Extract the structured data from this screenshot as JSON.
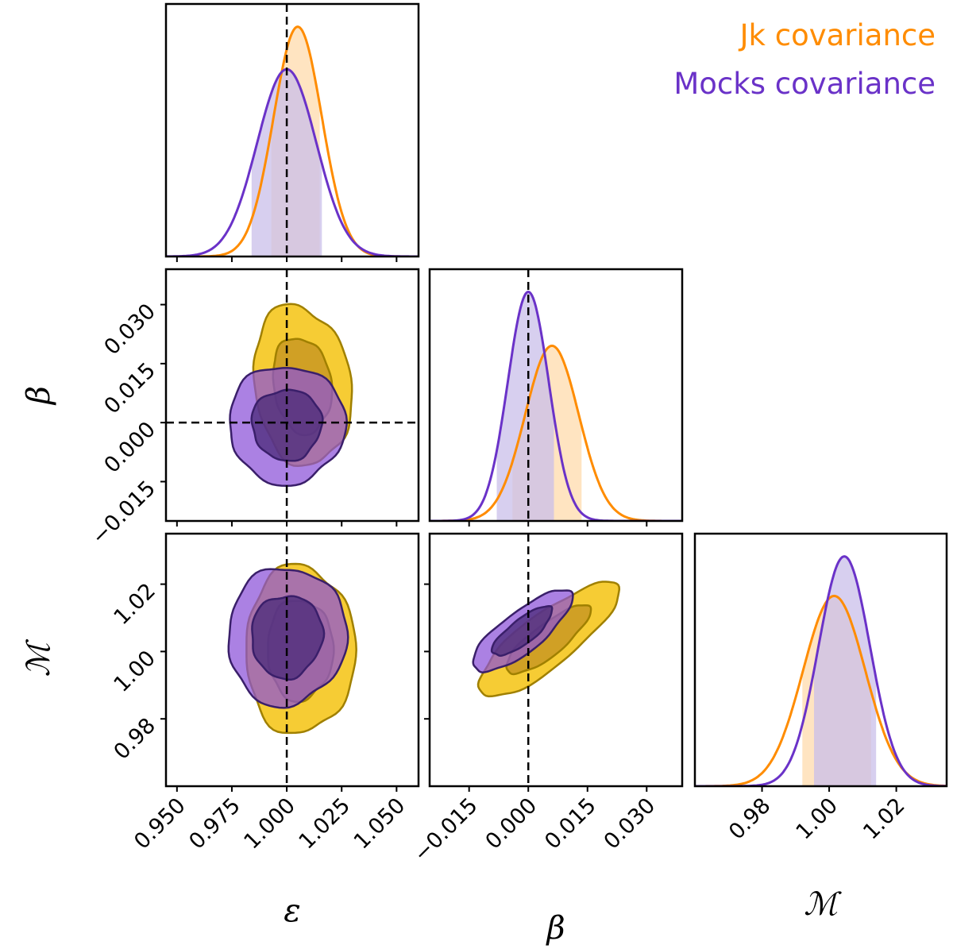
{
  "colors": {
    "jk_line": "#ff8c00",
    "jk_fill": "#f5c518",
    "jk_edge": "#a08000",
    "mocks_line": "#6a32c8",
    "mocks_fill_outer": "#8a50d8",
    "mocks_fill_inner": "#4a2a78",
    "mocks_edge": "#3a1f6a",
    "jk_band": "#ffd9a6",
    "mocks_band": "#c9bfe9",
    "overlap_band": "#c9a9a9"
  },
  "legend": {
    "jk": "Jk covariance",
    "mocks": "Mocks covariance"
  },
  "chart_data": {
    "type": "corner",
    "parameters": [
      {
        "id": "epsilon",
        "symbol": "ε",
        "range": [
          0.945,
          1.06
        ],
        "ticks": [
          "0.950",
          "0.975",
          "1.000",
          "1.025",
          "1.050"
        ],
        "tick_values": [
          0.95,
          0.975,
          1.0,
          1.025,
          1.05
        ],
        "truth": 1.0
      },
      {
        "id": "beta",
        "symbol": "β",
        "range": [
          -0.025,
          0.039
        ],
        "ticks": [
          "−0.015",
          "0.000",
          "0.015",
          "0.030"
        ],
        "tick_values": [
          -0.015,
          0.0,
          0.015,
          0.03
        ],
        "truth": 0.0
      },
      {
        "id": "M",
        "symbol": "ℳ",
        "range": [
          0.96,
          1.035
        ],
        "ticks": [
          "0.98",
          "1.00",
          "1.02"
        ],
        "tick_values": [
          0.98,
          1.0,
          1.02
        ],
        "truth": null
      }
    ],
    "series": [
      {
        "name": "Jk covariance",
        "mean": [
          1.005,
          0.006,
          1.0015
        ],
        "sigma": [
          0.011,
          0.0068,
          0.0093
        ],
        "interval68": [
          [
            0.993,
            1.015
          ],
          [
            -0.004,
            0.0135
          ],
          [
            0.992,
            1.0125
          ]
        ]
      },
      {
        "name": "Mocks covariance",
        "mean": [
          1.0,
          0.0,
          1.0045
        ],
        "sigma": [
          0.0135,
          0.0052,
          0.0077
        ],
        "interval68": [
          [
            0.984,
            1.016
          ],
          [
            -0.008,
            0.0065
          ],
          [
            0.9955,
            1.014
          ]
        ]
      }
    ],
    "contours": [
      {
        "name": "Jk covariance",
        "pair": [
          "epsilon",
          "beta"
        ],
        "center": [
          1.007,
          0.0095
        ],
        "radius": [
          0.022,
          0.0205
        ],
        "tilt": 8
      },
      {
        "name": "Mocks covariance",
        "pair": [
          "epsilon",
          "beta"
        ],
        "center": [
          1.0,
          -0.0005
        ],
        "radius": [
          0.0265,
          0.015
        ],
        "tilt": 4
      },
      {
        "name": "Jk covariance",
        "pair": [
          "epsilon",
          "M"
        ],
        "center": [
          1.006,
          1.0005
        ],
        "radius": [
          0.025,
          0.025
        ],
        "tilt": 0
      },
      {
        "name": "Mocks covariance",
        "pair": [
          "epsilon",
          "M"
        ],
        "center": [
          1.0,
          1.0045
        ],
        "radius": [
          0.027,
          0.0205
        ],
        "tilt": -6
      },
      {
        "name": "Jk covariance",
        "pair": [
          "beta",
          "M"
        ],
        "center": [
          0.005,
          1.0035
        ],
        "radius": [
          0.022,
          0.0078
        ],
        "tilt": 38
      },
      {
        "name": "Mocks covariance",
        "pair": [
          "beta",
          "M"
        ],
        "center": [
          -0.0015,
          1.006
        ],
        "radius": [
          0.0155,
          0.006
        ],
        "tilt": 38
      }
    ],
    "legend_position": "top-right",
    "truth_lines": "dashed"
  }
}
